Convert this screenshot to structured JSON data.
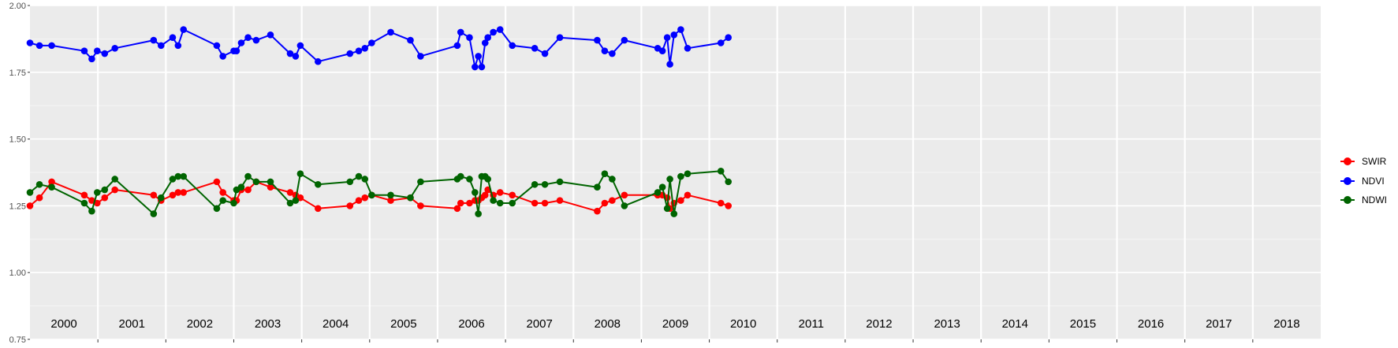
{
  "chart_data": {
    "type": "line",
    "ylim": [
      0.75,
      2.0
    ],
    "xlim": [
      2000.0,
      2019.0
    ],
    "y_ticks": [
      "0.75",
      "1.00",
      "1.25",
      "1.50",
      "1.75",
      "2.00"
    ],
    "y_tick_values": [
      0.75,
      1.0,
      1.25,
      1.5,
      1.75,
      2.0
    ],
    "year_labels": [
      "2000",
      "2001",
      "2002",
      "2003",
      "2004",
      "2005",
      "2006",
      "2007",
      "2008",
      "2009",
      "2010",
      "2011",
      "2012",
      "2013",
      "2014",
      "2015",
      "2016",
      "2017",
      "2018"
    ],
    "grid": true,
    "legend_position": "right",
    "series": [
      {
        "name": "SWIR",
        "color": "#ff0000",
        "x": [
          2000.0,
          2000.14,
          2000.32,
          2000.8,
          2000.91,
          2000.99,
          2001.1,
          2001.25,
          2001.82,
          2001.93,
          2002.1,
          2002.18,
          2002.26,
          2002.75,
          2002.84,
          2003.0,
          2003.04,
          2003.11,
          2003.21,
          2003.33,
          2003.54,
          2003.83,
          2003.91,
          2003.98,
          2004.24,
          2004.71,
          2004.84,
          2004.93,
          2005.03,
          2005.31,
          2005.6,
          2005.75,
          2006.29,
          2006.34,
          2006.47,
          2006.55,
          2006.6,
          2006.65,
          2006.7,
          2006.74,
          2006.82,
          2006.92,
          2007.1,
          2007.43,
          2007.58,
          2007.8,
          2008.35,
          2008.46,
          2008.57,
          2008.75,
          2009.24,
          2009.31,
          2009.38,
          2009.42,
          2009.48,
          2009.58,
          2009.68,
          2010.17,
          2010.28
        ],
        "y": [
          1.25,
          1.28,
          1.34,
          1.29,
          1.27,
          1.26,
          1.28,
          1.31,
          1.29,
          1.27,
          1.29,
          1.3,
          1.3,
          1.34,
          1.3,
          1.27,
          1.27,
          1.31,
          1.31,
          1.34,
          1.32,
          1.3,
          1.29,
          1.28,
          1.24,
          1.25,
          1.27,
          1.28,
          1.29,
          1.27,
          1.28,
          1.25,
          1.24,
          1.26,
          1.26,
          1.27,
          1.27,
          1.28,
          1.29,
          1.31,
          1.29,
          1.3,
          1.29,
          1.26,
          1.26,
          1.27,
          1.23,
          1.26,
          1.27,
          1.29,
          1.29,
          1.29,
          1.28,
          1.24,
          1.26,
          1.27,
          1.29,
          1.26,
          1.25
        ]
      },
      {
        "name": "NDVI",
        "color": "#0000ff",
        "x": [
          2000.0,
          2000.14,
          2000.32,
          2000.8,
          2000.91,
          2000.99,
          2001.1,
          2001.25,
          2001.82,
          2001.93,
          2002.1,
          2002.18,
          2002.26,
          2002.75,
          2002.84,
          2003.0,
          2003.04,
          2003.11,
          2003.21,
          2003.33,
          2003.54,
          2003.83,
          2003.91,
          2003.98,
          2004.24,
          2004.71,
          2004.84,
          2004.93,
          2005.03,
          2005.31,
          2005.6,
          2005.75,
          2006.29,
          2006.34,
          2006.47,
          2006.55,
          2006.6,
          2006.65,
          2006.7,
          2006.74,
          2006.82,
          2006.92,
          2007.1,
          2007.43,
          2007.58,
          2007.8,
          2008.35,
          2008.46,
          2008.57,
          2008.75,
          2009.24,
          2009.31,
          2009.38,
          2009.42,
          2009.48,
          2009.58,
          2009.68,
          2010.17,
          2010.28
        ],
        "y": [
          1.86,
          1.85,
          1.85,
          1.83,
          1.8,
          1.83,
          1.82,
          1.84,
          1.87,
          1.85,
          1.88,
          1.85,
          1.91,
          1.85,
          1.81,
          1.83,
          1.83,
          1.86,
          1.88,
          1.87,
          1.89,
          1.82,
          1.81,
          1.85,
          1.79,
          1.82,
          1.83,
          1.84,
          1.86,
          1.9,
          1.87,
          1.81,
          1.85,
          1.9,
          1.88,
          1.77,
          1.81,
          1.77,
          1.86,
          1.88,
          1.9,
          1.91,
          1.85,
          1.84,
          1.82,
          1.88,
          1.87,
          1.83,
          1.82,
          1.87,
          1.84,
          1.83,
          1.88,
          1.78,
          1.89,
          1.91,
          1.84,
          1.86,
          1.88
        ]
      },
      {
        "name": "NDWI",
        "color": "#006400",
        "x": [
          2000.0,
          2000.14,
          2000.32,
          2000.8,
          2000.91,
          2000.99,
          2001.1,
          2001.25,
          2001.82,
          2001.93,
          2002.1,
          2002.18,
          2002.26,
          2002.75,
          2002.84,
          2003.0,
          2003.04,
          2003.11,
          2003.21,
          2003.33,
          2003.54,
          2003.83,
          2003.91,
          2003.98,
          2004.24,
          2004.71,
          2004.84,
          2004.93,
          2005.03,
          2005.31,
          2005.6,
          2005.75,
          2006.29,
          2006.34,
          2006.47,
          2006.55,
          2006.6,
          2006.65,
          2006.7,
          2006.74,
          2006.82,
          2006.92,
          2007.1,
          2007.43,
          2007.58,
          2007.8,
          2008.35,
          2008.46,
          2008.57,
          2008.75,
          2009.24,
          2009.31,
          2009.38,
          2009.42,
          2009.48,
          2009.58,
          2009.68,
          2010.17,
          2010.28
        ],
        "y": [
          1.3,
          1.33,
          1.32,
          1.26,
          1.23,
          1.3,
          1.31,
          1.35,
          1.22,
          1.28,
          1.35,
          1.36,
          1.36,
          1.24,
          1.27,
          1.26,
          1.31,
          1.32,
          1.36,
          1.34,
          1.34,
          1.26,
          1.27,
          1.37,
          1.33,
          1.34,
          1.36,
          1.35,
          1.29,
          1.29,
          1.28,
          1.34,
          1.35,
          1.36,
          1.35,
          1.3,
          1.22,
          1.36,
          1.36,
          1.35,
          1.27,
          1.26,
          1.26,
          1.33,
          1.33,
          1.34,
          1.32,
          1.37,
          1.35,
          1.25,
          1.3,
          1.32,
          1.24,
          1.35,
          1.22,
          1.36,
          1.37,
          1.38,
          1.34
        ]
      }
    ]
  }
}
